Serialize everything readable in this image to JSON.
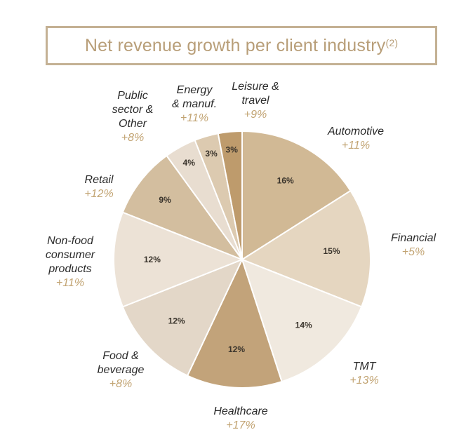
{
  "title": "Net revenue growth per client industry",
  "title_note": "(2)",
  "colors": {
    "title": "#b89e78",
    "border": "#c4b194",
    "growth_text": "#c2a473",
    "name_text": "#2a2a2a"
  },
  "chart_data": {
    "type": "pie",
    "title": "Net revenue growth per client industry",
    "unit": "%",
    "start": "12 o'clock, clockwise",
    "slices": [
      {
        "name_lines": [
          "Automotive"
        ],
        "value": 16,
        "label": "16%",
        "growth": "+11%",
        "color": "#d1b995"
      },
      {
        "name_lines": [
          "Financial"
        ],
        "value": 15,
        "label": "15%",
        "growth": "+5%",
        "color": "#e5d6c0"
      },
      {
        "name_lines": [
          "TMT"
        ],
        "value": 14,
        "label": "14%",
        "growth": "+13%",
        "color": "#f0e9df"
      },
      {
        "name_lines": [
          "Healthcare"
        ],
        "value": 12,
        "label": "12%",
        "growth": "+17%",
        "color": "#c2a37a"
      },
      {
        "name_lines": [
          "Food &",
          "beverage"
        ],
        "value": 12,
        "label": "12%",
        "growth": "+8%",
        "color": "#e3d7c8"
      },
      {
        "name_lines": [
          "Non-food",
          "consumer",
          "products"
        ],
        "value": 12,
        "label": "12%",
        "growth": "+11%",
        "color": "#ece2d6"
      },
      {
        "name_lines": [
          "Retail"
        ],
        "value": 9,
        "label": "9%",
        "growth": "+12%",
        "color": "#d3be9f"
      },
      {
        "name_lines": [
          "Public",
          "sector &",
          "Other"
        ],
        "value": 4,
        "label": "4%",
        "growth": "+8%",
        "color": "#e8ddd0"
      },
      {
        "name_lines": [
          "Energy",
          "& manuf."
        ],
        "value": 3,
        "label": "3%",
        "growth": "+11%",
        "color": "#dccab0"
      },
      {
        "name_lines": [
          "Leisure &",
          "travel"
        ],
        "value": 3,
        "label": "3%",
        "growth": "+9%",
        "color": "#be9b6c"
      }
    ]
  }
}
